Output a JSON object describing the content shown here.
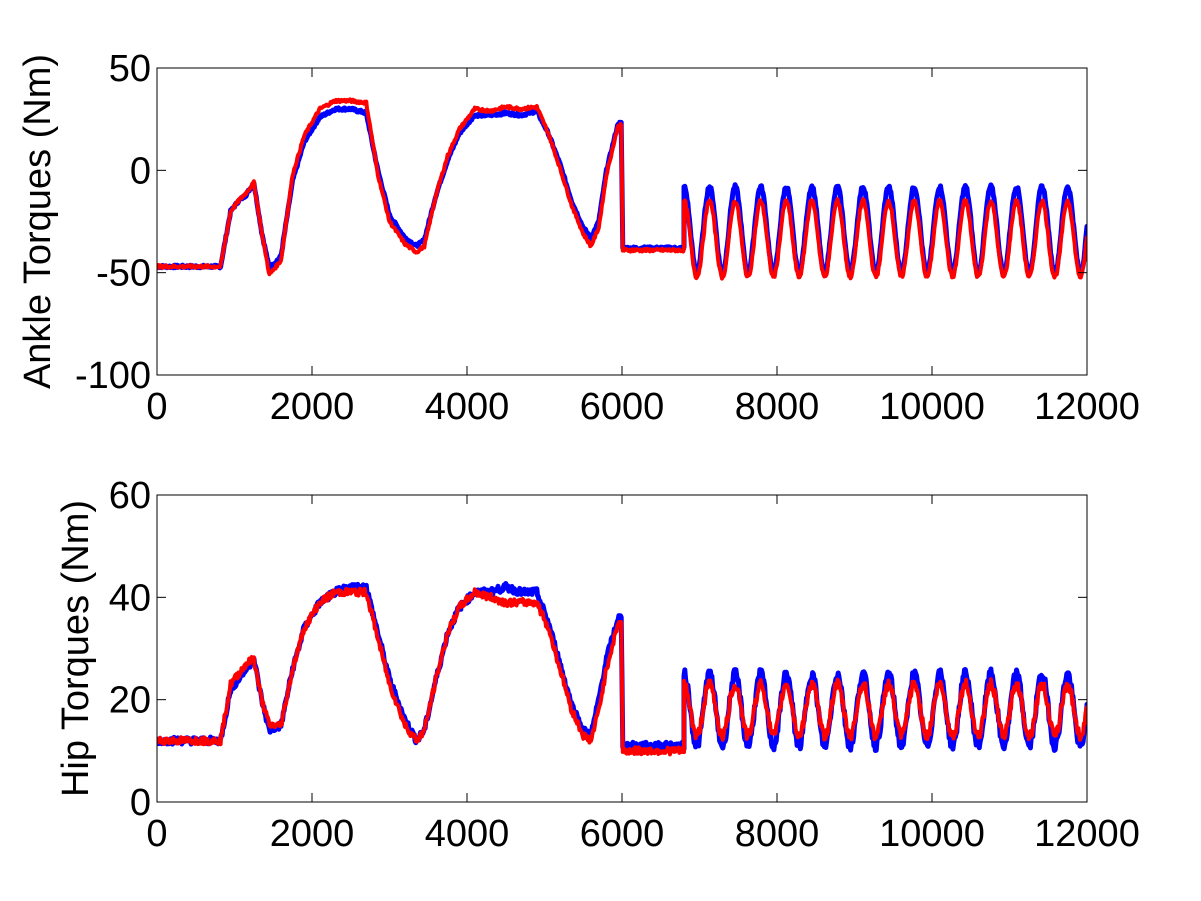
{
  "chart_data": [
    {
      "type": "line",
      "ylabel": "Ankle Torques (Nm)",
      "xlim": [
        0,
        12000
      ],
      "ylim": [
        -100,
        50
      ],
      "xticks": [
        0,
        2000,
        4000,
        6000,
        8000,
        10000,
        12000
      ],
      "xtick_labels": [
        "0",
        "2000",
        "4000",
        "6000",
        "8000",
        "10000",
        "12000"
      ],
      "yticks": [
        -100,
        -50,
        0,
        50
      ],
      "ytick_labels": [
        "-100",
        "-50",
        "0",
        "50"
      ],
      "grid": false,
      "series": [
        {
          "color": "#0000ff",
          "x": [
            0,
            820,
            950,
            1050,
            1150,
            1250,
            1350,
            1450,
            1600,
            1750,
            1900,
            2100,
            2300,
            2500,
            2700,
            2850,
            3000,
            3200,
            3350,
            3450,
            3600,
            3750,
            3900,
            4100,
            4300,
            4500,
            4700,
            4900,
            5050,
            5200,
            5350,
            5500,
            5600,
            5700,
            5800,
            5950,
            5990,
            6010,
            6800
          ],
          "y": [
            -47,
            -47,
            -20,
            -15,
            -12,
            -6,
            -30,
            -48,
            -42,
            -5,
            14,
            26,
            30,
            30,
            28,
            0,
            -22,
            -33,
            -37,
            -34,
            -12,
            5,
            18,
            27,
            27,
            28,
            27,
            29,
            18,
            3,
            -15,
            -28,
            -33,
            -25,
            0,
            23,
            23,
            -38,
            -38
          ],
          "osc": {
            "x_start": 6800,
            "x_end": 12000,
            "period": 330,
            "max_y": -8,
            "min_y": -50
          }
        },
        {
          "color": "#ff0000",
          "x": [
            0,
            820,
            950,
            1050,
            1150,
            1250,
            1350,
            1450,
            1600,
            1750,
            1900,
            2100,
            2300,
            2500,
            2700,
            2850,
            3000,
            3200,
            3350,
            3450,
            3600,
            3750,
            3900,
            4100,
            4300,
            4500,
            4700,
            4900,
            5050,
            5200,
            5350,
            5500,
            5600,
            5700,
            5800,
            5950,
            5990,
            6010,
            6800
          ],
          "y": [
            -47,
            -47,
            -20,
            -15,
            -11,
            -6,
            -30,
            -51,
            -44,
            -2,
            17,
            30,
            34,
            34,
            33,
            -2,
            -25,
            -36,
            -40,
            -37,
            -12,
            7,
            20,
            30,
            29,
            31,
            30,
            31,
            18,
            1,
            -17,
            -31,
            -37,
            -28,
            -2,
            22,
            22,
            -39,
            -39
          ],
          "osc": {
            "x_start": 6800,
            "x_end": 12000,
            "period": 330,
            "max_y": -15,
            "min_y": -52
          }
        }
      ]
    },
    {
      "type": "line",
      "ylabel": "Hip Torques (Nm)",
      "xlim": [
        0,
        12000
      ],
      "ylim": [
        0,
        60
      ],
      "xticks": [
        0,
        2000,
        4000,
        6000,
        8000,
        10000,
        12000
      ],
      "xtick_labels": [
        "0",
        "2000",
        "4000",
        "6000",
        "8000",
        "10000",
        "12000"
      ],
      "yticks": [
        0,
        20,
        40,
        60
      ],
      "ytick_labels": [
        "0",
        "20",
        "40",
        "60"
      ],
      "grid": false,
      "series": [
        {
          "color": "#0000ff",
          "x": [
            0,
            820,
            950,
            1050,
            1150,
            1250,
            1350,
            1450,
            1600,
            1750,
            1900,
            2100,
            2300,
            2500,
            2700,
            2850,
            3000,
            3200,
            3350,
            3450,
            3600,
            3750,
            3900,
            4100,
            4300,
            4500,
            4700,
            4900,
            5050,
            5200,
            5350,
            5500,
            5600,
            5700,
            5800,
            5950,
            5990,
            6010,
            6800
          ],
          "y": [
            12,
            12,
            22,
            24,
            26,
            28,
            20,
            14,
            15,
            26,
            34,
            39,
            41,
            42,
            42,
            33,
            24,
            16,
            12,
            14,
            24,
            33,
            38,
            41,
            41,
            42,
            41,
            41,
            35,
            27,
            19,
            14,
            13,
            20,
            28,
            36,
            36,
            11,
            11
          ],
          "osc": {
            "x_start": 6800,
            "x_end": 12000,
            "period": 330,
            "max_y": 25,
            "min_y": 11
          }
        },
        {
          "color": "#ff0000",
          "x": [
            0,
            820,
            950,
            1050,
            1150,
            1250,
            1350,
            1450,
            1600,
            1750,
            1900,
            2100,
            2300,
            2500,
            2700,
            2850,
            3000,
            3200,
            3350,
            3450,
            3600,
            3750,
            3900,
            4100,
            4300,
            4500,
            4700,
            4900,
            5050,
            5200,
            5350,
            5500,
            5600,
            5700,
            5800,
            5950,
            5990,
            6010,
            6800
          ],
          "y": [
            12,
            12,
            23,
            25,
            27,
            28,
            20,
            15,
            15,
            26,
            34,
            39,
            41,
            41,
            41,
            32,
            23,
            15,
            12,
            14,
            24,
            33,
            38,
            41,
            40,
            39,
            39,
            39,
            34,
            26,
            18,
            13,
            12,
            18,
            26,
            35,
            35,
            10,
            10
          ],
          "osc": {
            "x_start": 6800,
            "x_end": 12000,
            "period": 330,
            "max_y": 23,
            "min_y": 13
          }
        }
      ]
    }
  ]
}
